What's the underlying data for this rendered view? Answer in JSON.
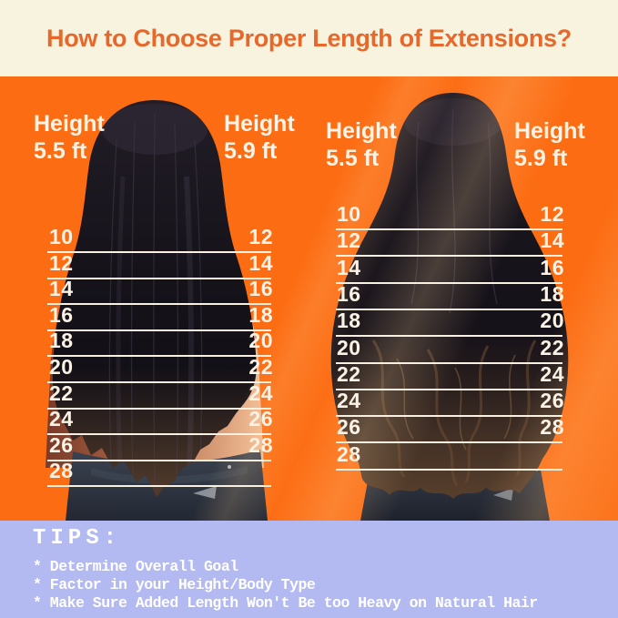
{
  "header": {
    "title": "How to Choose Proper Length of Extensions?"
  },
  "panels": [
    {
      "name": "straight",
      "photo": "straight-black-hair-back-view",
      "label_left": {
        "line1": "Height",
        "line2": "5.5 ft"
      },
      "label_right": {
        "line1": "Height",
        "line2": "5.9 ft"
      },
      "rows": [
        {
          "left": "10",
          "right": "12"
        },
        {
          "left": "12",
          "right": "14"
        },
        {
          "left": "14",
          "right": "16"
        },
        {
          "left": "16",
          "right": "18"
        },
        {
          "left": "18",
          "right": "20"
        },
        {
          "left": "20",
          "right": "22"
        },
        {
          "left": "22",
          "right": "24"
        },
        {
          "left": "24",
          "right": "26"
        },
        {
          "left": "26",
          "right": "28"
        },
        {
          "left": "28",
          "right": ""
        }
      ]
    },
    {
      "name": "wavy",
      "photo": "wavy-dark-brown-hair-back-view",
      "label_left": {
        "line1": "Height",
        "line2": "5.5 ft"
      },
      "label_right": {
        "line1": "Height",
        "line2": "5.9 ft"
      },
      "rows": [
        {
          "left": "10",
          "right": "12"
        },
        {
          "left": "12",
          "right": "14"
        },
        {
          "left": "14",
          "right": "16"
        },
        {
          "left": "16",
          "right": "18"
        },
        {
          "left": "18",
          "right": "20"
        },
        {
          "left": "20",
          "right": "22"
        },
        {
          "left": "22",
          "right": "24"
        },
        {
          "left": "24",
          "right": "26"
        },
        {
          "left": "26",
          "right": "28"
        },
        {
          "left": "28",
          "right": ""
        }
      ]
    }
  ],
  "tips": {
    "heading": "TIPS:",
    "items": [
      "* Determine Overall Goal",
      "* Factor in your Height/Body Type",
      "* Make Sure Added Length Won't Be too Heavy on Natural Hair"
    ]
  },
  "colors": {
    "bg_orange": "#fc6c12",
    "header_cream": "#f7f3df",
    "title_orange": "#e7682a",
    "tips_lavender": "#b3b9f1",
    "line_white": "#f8f1e2",
    "hair_dark": "#141117",
    "hair_brown": "#6a4c35",
    "jeans_dark": "#2e3440",
    "skin_peach": "#f2bd96"
  }
}
